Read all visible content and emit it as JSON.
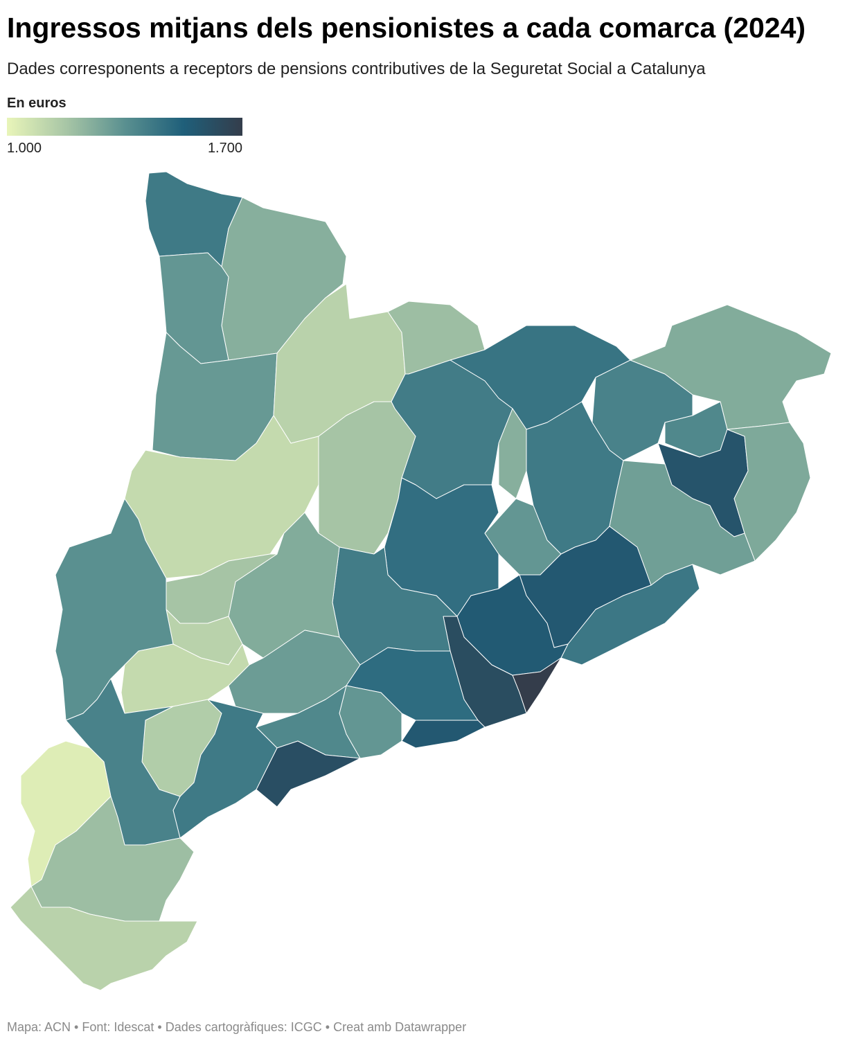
{
  "chart_data": {
    "type": "choropleth",
    "title": "Ingressos mitjans dels pensionistes a cada comarca (2024)",
    "subtitle": "Dades corresponents a receptors de pensions contributives de la Seguretat Social a Catalunya",
    "legend_title": "En euros",
    "colors": [
      "#e9f5b9",
      "#a8c6a6",
      "#5a9090",
      "#1f5f7a",
      "#343d4b"
    ],
    "clim": [
      1000,
      1700
    ],
    "ticks": [
      {
        "value": 1000,
        "label": "1.000"
      },
      {
        "value": 1700,
        "label": "1.700"
      }
    ],
    "values": [
      1430,
      1250,
      1330,
      1320,
      1130,
      1200,
      1450,
      1420,
      1180,
      1100,
      1400,
      1260,
      1380,
      1580,
      1270,
      1430,
      1250,
      1300,
      1470,
      1330,
      1560,
      1440,
      1550,
      1700,
      1620,
      1420,
      1260,
      1180,
      1130,
      1350,
      1100,
      1310,
      1480,
      1560,
      1330,
      1380,
      1610,
      1150,
      1430,
      1400,
      1030,
      1200,
      1130
    ]
  },
  "footer": "Mapa: ACN • Font: Idescat • Dades cartogràfiques: ICGC  • Creat amb Datawrapper"
}
